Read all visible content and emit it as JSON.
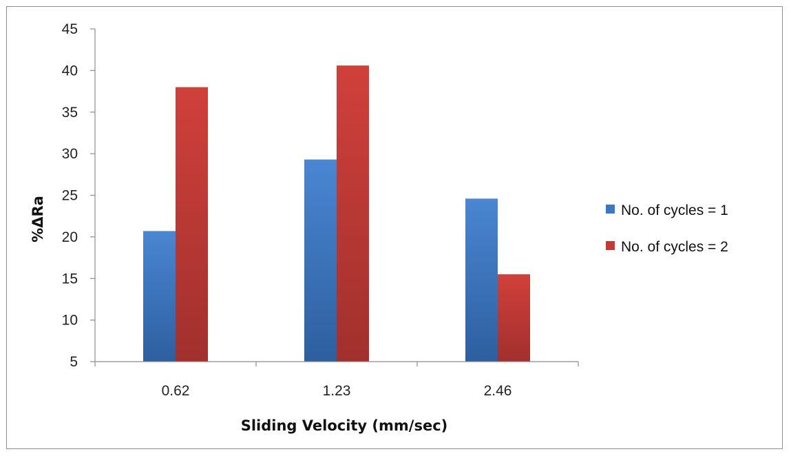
{
  "chart_data": {
    "type": "bar",
    "title": "",
    "xlabel": "Sliding Velocity (mm/sec)",
    "ylabel": "%ΔRa",
    "categories": [
      "0.62",
      "1.23",
      "2.46"
    ],
    "series": [
      {
        "name": "No. of cycles = 1",
        "values": [
          20.7,
          29.3,
          24.6
        ],
        "color": "#3b78c4"
      },
      {
        "name": "No. of cycles = 2",
        "values": [
          38.0,
          40.6,
          15.5
        ],
        "color": "#c23b37"
      }
    ],
    "ylim": [
      5,
      45
    ],
    "yticks": [
      5,
      10,
      15,
      20,
      25,
      30,
      35,
      40,
      45
    ],
    "grid": false,
    "legend_position": "right"
  }
}
